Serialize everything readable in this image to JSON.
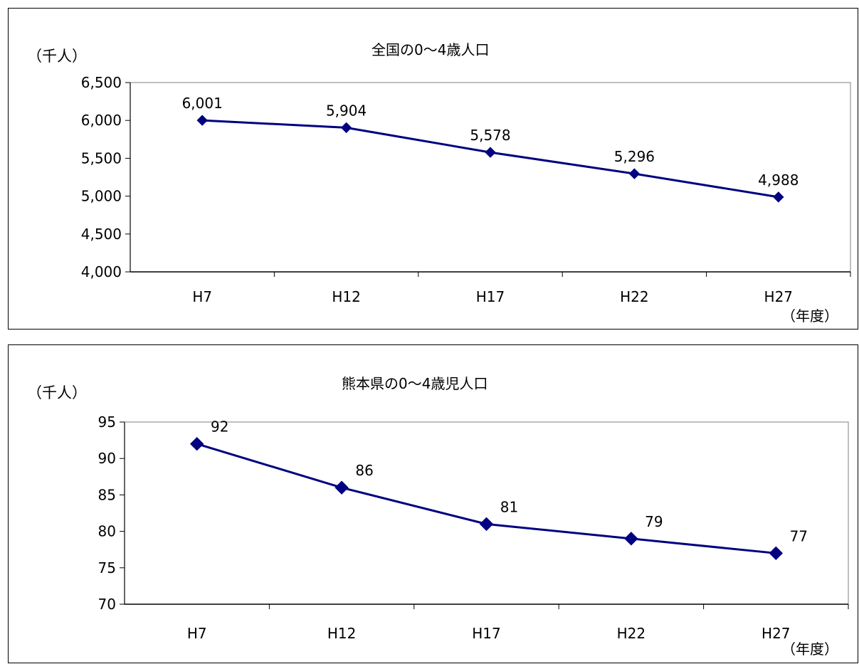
{
  "chart_data": [
    {
      "type": "line",
      "title": "全国の0～4歳人口",
      "ylabel": "（千人）",
      "xlabel": "（年度）",
      "categories": [
        "H7",
        "H12",
        "H17",
        "H22",
        "H27"
      ],
      "series": [
        {
          "values": [
            6001,
            5904,
            5578,
            5296,
            4988
          ],
          "data_labels": [
            "6,001",
            "5,904",
            "5,578",
            "5,296",
            "4,988"
          ]
        }
      ],
      "ylim": [
        4000,
        6500
      ],
      "yticks": [
        4000,
        4500,
        5000,
        5500,
        6000,
        6500
      ],
      "ytick_labels": [
        "4,000",
        "4,500",
        "5,000",
        "5,500",
        "6,000",
        "6,500"
      ],
      "grid": false,
      "legend": "none",
      "line_color": "#000080"
    },
    {
      "type": "line",
      "title": "熊本県の0～4歳児人口",
      "ylabel": "（千人）",
      "xlabel": "（年度）",
      "categories": [
        "H7",
        "H12",
        "H17",
        "H22",
        "H27"
      ],
      "series": [
        {
          "values": [
            92,
            86,
            81,
            79,
            77
          ],
          "data_labels": [
            "92",
            "86",
            "81",
            "79",
            "77"
          ]
        }
      ],
      "ylim": [
        70,
        95
      ],
      "yticks": [
        70,
        75,
        80,
        85,
        90,
        95
      ],
      "ytick_labels": [
        "70",
        "75",
        "80",
        "85",
        "90",
        "95"
      ],
      "grid": false,
      "legend": "none",
      "line_color": "#000080"
    }
  ]
}
